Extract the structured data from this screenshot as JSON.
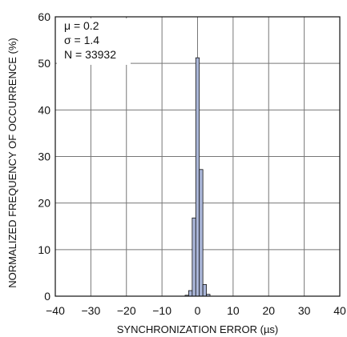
{
  "chart_data": {
    "type": "bar",
    "xlabel": "SYNCHRONIZATION ERROR (µs)",
    "ylabel": "NORMALIZED FREQUENCY OF OCCURRENCE (%)",
    "xlim": [
      -40,
      40
    ],
    "ylim": [
      0,
      60
    ],
    "xticks": [
      "−40",
      "−30",
      "−20",
      "−10",
      "0",
      "10",
      "20",
      "30",
      "40"
    ],
    "xtick_values": [
      -40,
      -30,
      -20,
      -10,
      0,
      10,
      20,
      30,
      40
    ],
    "yticks": [
      "0",
      "10",
      "20",
      "30",
      "40",
      "50",
      "60"
    ],
    "ytick_values": [
      0,
      10,
      20,
      30,
      40,
      50,
      60
    ],
    "grid": true,
    "bin_width": 1,
    "bins": [
      {
        "x": -3,
        "value": 0.2
      },
      {
        "x": -2,
        "value": 1.2
      },
      {
        "x": -1,
        "value": 16.8
      },
      {
        "x": 0,
        "value": 51.2
      },
      {
        "x": 1,
        "value": 27.2
      },
      {
        "x": 2,
        "value": 2.5
      },
      {
        "x": 3,
        "value": 0.4
      }
    ],
    "annotations": [
      "μ = 0.2",
      "σ = 1.4",
      "N = 33932"
    ]
  }
}
